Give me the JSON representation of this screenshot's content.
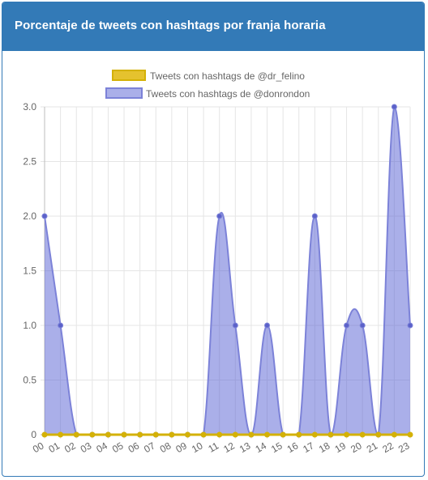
{
  "panel": {
    "title": "Porcentaje de tweets con hashtags por franja horaria"
  },
  "colors": {
    "header_bg": "#337ab7",
    "series_1_fill": "#e5c22e",
    "series_1_stroke": "#d4b106",
    "series_2_fill": "rgba(86, 95, 212, 0.5)",
    "series_2_stroke": "#7c82d8",
    "series_2_point": "#5b61c9",
    "grid": "#e5e5e5"
  },
  "chart_data": {
    "type": "area",
    "x": [
      "00",
      "01",
      "02",
      "03",
      "04",
      "05",
      "06",
      "07",
      "08",
      "09",
      "10",
      "11",
      "12",
      "13",
      "14",
      "15",
      "16",
      "17",
      "18",
      "19",
      "20",
      "21",
      "22",
      "23"
    ],
    "series": [
      {
        "name": "Tweets con hashtags de @dr_felino",
        "values": [
          0,
          0,
          0,
          0,
          0,
          0,
          0,
          0,
          0,
          0,
          0,
          0,
          0,
          0,
          0,
          0,
          0,
          0,
          0,
          0,
          0,
          0,
          0,
          0
        ]
      },
      {
        "name": "Tweets con hashtags de @donrondon",
        "values": [
          2,
          1,
          0,
          0,
          0,
          0,
          0,
          0,
          0,
          0,
          0,
          2,
          1,
          0,
          1,
          0,
          0,
          2,
          0,
          1,
          1,
          0,
          3,
          1
        ]
      }
    ],
    "ylim": [
      0,
      3
    ],
    "yticks": [
      "0",
      "0.5",
      "1.0",
      "1.5",
      "2.0",
      "2.5",
      "3.0"
    ],
    "grid": true,
    "legend_position": "top"
  }
}
